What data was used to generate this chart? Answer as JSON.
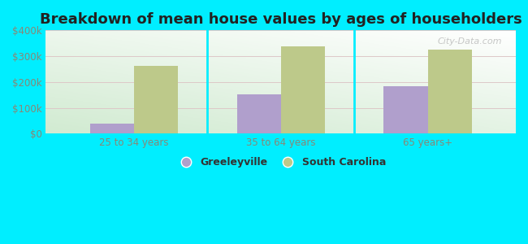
{
  "title": "Breakdown of mean house values by ages of householders",
  "categories": [
    "25 to 34 years",
    "35 to 64 years",
    "65 years+"
  ],
  "greeleyville_values": [
    40000,
    152000,
    185000
  ],
  "south_carolina_values": [
    262000,
    338000,
    325000
  ],
  "greeleyville_color": "#b09fcc",
  "south_carolina_color": "#bdc98a",
  "ylim": [
    0,
    400000
  ],
  "yticks": [
    0,
    100000,
    200000,
    300000,
    400000
  ],
  "ytick_labels": [
    "$0",
    "$100k",
    "$200k",
    "$300k",
    "$400k"
  ],
  "background_color": "#00eeff",
  "title_fontsize": 13,
  "legend_labels": [
    "Greeleyville",
    "South Carolina"
  ],
  "bar_width": 0.3,
  "watermark": "City-Data.com",
  "grid_color": "#ddcccc",
  "tick_color": "#888877"
}
